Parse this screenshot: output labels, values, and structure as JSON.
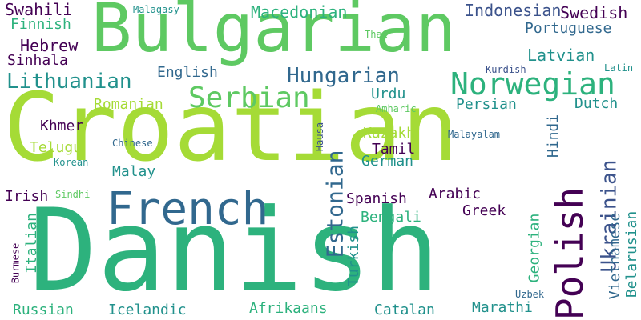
{
  "colors": {
    "background": "#ffffff",
    "palette": [
      "#440154",
      "#3b528b",
      "#21918c",
      "#2db27d",
      "#5ec962",
      "#a5db36"
    ]
  },
  "words": [
    {
      "text": "Croatian",
      "color": "#a5db36"
    },
    {
      "text": "Danish",
      "color": "#2db27d"
    },
    {
      "text": "Bulgarian",
      "color": "#5ec962"
    },
    {
      "text": "French",
      "color": "#31688e"
    },
    {
      "text": "Norwegian",
      "color": "#2db27d"
    },
    {
      "text": "Polish",
      "color": "#440154"
    },
    {
      "text": "Serbian",
      "color": "#5ec962"
    },
    {
      "text": "Lithuanian",
      "color": "#21918c"
    },
    {
      "text": "Hungarian",
      "color": "#31688e"
    },
    {
      "text": "Estonian",
      "color": "#31688e"
    },
    {
      "text": "Ukrainian",
      "color": "#3b528b"
    },
    {
      "text": "Swahili",
      "color": "#440154"
    },
    {
      "text": "Malagasy",
      "color": "#21918c"
    },
    {
      "text": "Macedonian",
      "color": "#2db27d"
    },
    {
      "text": "Indonesian",
      "color": "#3b528b"
    },
    {
      "text": "Swedish",
      "color": "#440154"
    },
    {
      "text": "Finnish",
      "color": "#2db27d"
    },
    {
      "text": "Thai",
      "color": "#5ec962"
    },
    {
      "text": "Portuguese",
      "color": "#31688e"
    },
    {
      "text": "Hebrew",
      "color": "#440154"
    },
    {
      "text": "Sinhala",
      "color": "#440154"
    },
    {
      "text": "Latvian",
      "color": "#21918c"
    },
    {
      "text": "Kurdish",
      "color": "#3b528b"
    },
    {
      "text": "Latin",
      "color": "#21918c"
    },
    {
      "text": "English",
      "color": "#31688e"
    },
    {
      "text": "Urdu",
      "color": "#21918c"
    },
    {
      "text": "Amharic",
      "color": "#5ec962"
    },
    {
      "text": "Romanian",
      "color": "#a5db36"
    },
    {
      "text": "Persian",
      "color": "#21918c"
    },
    {
      "text": "Dutch",
      "color": "#21918c"
    },
    {
      "text": "Khmer",
      "color": "#440154"
    },
    {
      "text": "Hindi",
      "color": "#31688e"
    },
    {
      "text": "Kazakh",
      "color": "#a5db36"
    },
    {
      "text": "Telugu",
      "color": "#a5db36"
    },
    {
      "text": "Chinese",
      "color": "#31688e"
    },
    {
      "text": "Hausa",
      "color": "#3b528b"
    },
    {
      "text": "Malayalam",
      "color": "#31688e"
    },
    {
      "text": "Tamil",
      "color": "#440154"
    },
    {
      "text": "Korean",
      "color": "#21918c"
    },
    {
      "text": "German",
      "color": "#21918c"
    },
    {
      "text": "Malay",
      "color": "#21918c"
    },
    {
      "text": "Irish",
      "color": "#440154"
    },
    {
      "text": "Sindhi",
      "color": "#5ec962"
    },
    {
      "text": "Spanish",
      "color": "#440154"
    },
    {
      "text": "Arabic",
      "color": "#440154"
    },
    {
      "text": "Greek",
      "color": "#440154"
    },
    {
      "text": "Bengali",
      "color": "#2db27d"
    },
    {
      "text": "Italian",
      "color": "#2db27d"
    },
    {
      "text": "Burmese",
      "color": "#440154"
    },
    {
      "text": "Turkish",
      "color": "#21918c"
    },
    {
      "text": "Georgian",
      "color": "#2db27d"
    },
    {
      "text": "Vietnamese",
      "color": "#31688e"
    },
    {
      "text": "Belarusian",
      "color": "#21918c"
    },
    {
      "text": "Uzbek",
      "color": "#31688e"
    },
    {
      "text": "Russian",
      "color": "#2db27d"
    },
    {
      "text": "Icelandic",
      "color": "#21918c"
    },
    {
      "text": "Afrikaans",
      "color": "#2db27d"
    },
    {
      "text": "Catalan",
      "color": "#21918c"
    },
    {
      "text": "Marathi",
      "color": "#21918c"
    }
  ]
}
